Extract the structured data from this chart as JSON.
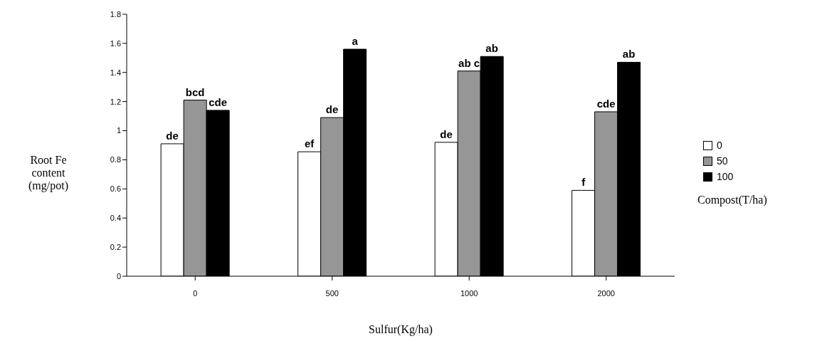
{
  "chart_data": {
    "type": "bar",
    "xlabel": "Sulfur(Kg/ha)",
    "ylabel": "Root Fe content (mg/pot)",
    "legend_title": "Compost(T/ha)",
    "categories": [
      "0",
      "500",
      "1000",
      "2000"
    ],
    "series": [
      {
        "name": "0",
        "color": "#ffffff",
        "values": [
          0.91,
          0.855,
          0.92,
          0.59
        ],
        "value_labels": [
          "de",
          "ef",
          "de",
          "f"
        ]
      },
      {
        "name": "50",
        "color": "#969696",
        "values": [
          1.21,
          1.09,
          1.41,
          1.13
        ],
        "value_labels": [
          "bcd",
          "de",
          "ab c",
          "cde"
        ]
      },
      {
        "name": "100",
        "color": "#000000",
        "values": [
          1.14,
          1.56,
          1.51,
          1.47
        ],
        "value_labels": [
          "cde",
          "a",
          "ab",
          "ab"
        ]
      }
    ],
    "ylim": [
      0,
      1.8
    ],
    "yticks": [
      0,
      0.2,
      0.4,
      0.6,
      0.8,
      1,
      1.2,
      1.4,
      1.6,
      1.8
    ],
    "legend": "right"
  }
}
